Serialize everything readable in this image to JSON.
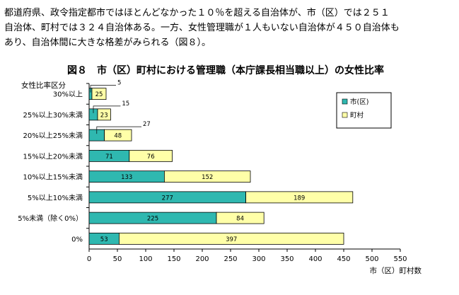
{
  "paragraph": {
    "lines": [
      "都道府県、政令指定都市ではほとんどなかった１０％を超える自治体が、市（区）では２５１",
      "自治体、町村では３２４自治体ある。一方、女性管理職が１人もいない自治体が４５０自治体も",
      "あり、自治体間に大きな格差がみられる（図８）。"
    ]
  },
  "chart_data": {
    "type": "bar",
    "orientation": "horizontal",
    "stacked": true,
    "title": "図８　市（区）町村における管理職（本庁課長相当職以上）の女性比率",
    "category_axis_title": "女性比率区分",
    "xlabel": "市（区）町村数",
    "xlim": [
      0,
      550
    ],
    "xticks": [
      0,
      50,
      100,
      150,
      200,
      250,
      300,
      350,
      400,
      450,
      500,
      550
    ],
    "grid": false,
    "legend_position": "top-right",
    "categories": [
      "30%以上",
      "25%以上30%未満",
      "20%以上25%未満",
      "15%以上20%未満",
      "10%以上15%未満",
      "5%以上10%未満",
      "5%未満（除く0%）",
      "0%"
    ],
    "series": [
      {
        "name": "市(区)",
        "color": "#2fb8b0",
        "values": [
          5,
          15,
          27,
          71,
          133,
          277,
          225,
          53
        ]
      },
      {
        "name": "町村",
        "color": "#ffffa8",
        "values": [
          25,
          23,
          48,
          76,
          152,
          189,
          84,
          397
        ]
      }
    ]
  }
}
